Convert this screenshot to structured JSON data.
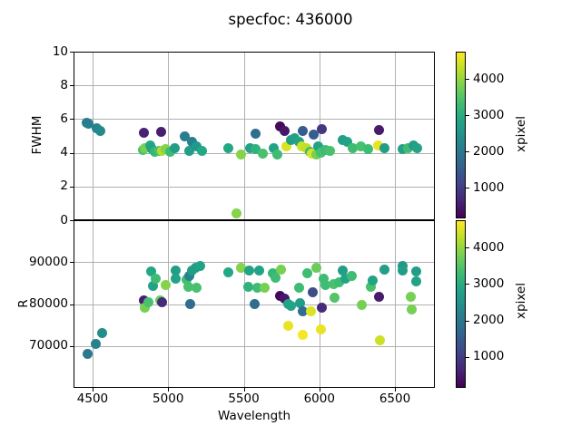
{
  "title": "specfoc: 436000",
  "xlabel": "Wavelength",
  "colorbar": {
    "label": "xpixel",
    "ticks": [
      1000,
      2000,
      3000,
      4000
    ],
    "vmin": 150,
    "vmax": 4750,
    "colormap": "viridis"
  },
  "colors": {
    "background": "#ffffff",
    "grid": "#b0b0b0",
    "text": "#000000",
    "spine": "#000000",
    "viridis": [
      "#440154",
      "#482475",
      "#414487",
      "#355f8d",
      "#2a788e",
      "#21918c",
      "#22a884",
      "#44bf70",
      "#7ad151",
      "#bddf26",
      "#fde725"
    ]
  },
  "chart_data": [
    {
      "type": "scatter",
      "panel": "top",
      "ylabel": "FWHM",
      "xlabel": "Wavelength",
      "xlim": [
        4374,
        6764
      ],
      "ylim": [
        0,
        10
      ],
      "xticks": [
        4500,
        5000,
        5500,
        6000,
        6500
      ],
      "yticks": [
        0,
        2,
        4,
        6,
        8,
        10
      ],
      "grid": true,
      "color_by": "xpixel",
      "color_range": [
        150,
        4750
      ],
      "point_format": [
        "wavelength",
        "fwhm",
        "xpixel"
      ],
      "points": [
        [
          4460,
          5.8,
          2050
        ],
        [
          4472,
          5.75,
          2100
        ],
        [
          4525,
          5.45,
          2200
        ],
        [
          4552,
          5.3,
          2300
        ],
        [
          4838,
          5.2,
          600
        ],
        [
          4952,
          5.25,
          550
        ],
        [
          4832,
          4.15,
          3400
        ],
        [
          4845,
          4.3,
          3800
        ],
        [
          4880,
          4.45,
          2900
        ],
        [
          4893,
          4.2,
          2800
        ],
        [
          4912,
          4.05,
          3200
        ],
        [
          4940,
          4.1,
          3400
        ],
        [
          4962,
          4.1,
          4200
        ],
        [
          4985,
          4.2,
          3900
        ],
        [
          5012,
          4.05,
          3300
        ],
        [
          5045,
          4.3,
          2700
        ],
        [
          5110,
          4.95,
          2100
        ],
        [
          5155,
          4.65,
          2150
        ],
        [
          5140,
          4.1,
          2700
        ],
        [
          5185,
          4.4,
          2600
        ],
        [
          5222,
          4.1,
          2900
        ],
        [
          5400,
          4.25,
          2900
        ],
        [
          5450,
          0.38,
          3900
        ],
        [
          5480,
          3.9,
          3900
        ],
        [
          5539,
          4.3,
          2800
        ],
        [
          5581,
          4.2,
          3100
        ],
        [
          5578,
          5.15,
          1800
        ],
        [
          5629,
          3.95,
          3400
        ],
        [
          5701,
          4.3,
          2800
        ],
        [
          5722,
          3.9,
          3300
        ],
        [
          5740,
          5.55,
          250
        ],
        [
          5768,
          5.3,
          450
        ],
        [
          5782,
          4.4,
          4500
        ],
        [
          5812,
          4.75,
          2700
        ],
        [
          5838,
          4.85,
          2750
        ],
        [
          5868,
          4.65,
          2800
        ],
        [
          5884,
          4.4,
          4400
        ],
        [
          5890,
          5.3,
          1500
        ],
        [
          5915,
          4.3,
          4300
        ],
        [
          5940,
          4.05,
          3300
        ],
        [
          5952,
          3.95,
          4500
        ],
        [
          5960,
          5.1,
          1500
        ],
        [
          5982,
          3.9,
          3800
        ],
        [
          5993,
          4.4,
          2800
        ],
        [
          6008,
          4.0,
          3400
        ],
        [
          6017,
          5.4,
          900
        ],
        [
          6038,
          4.15,
          3300
        ],
        [
          6071,
          4.1,
          3400
        ],
        [
          6155,
          4.75,
          2700
        ],
        [
          6183,
          4.65,
          2800
        ],
        [
          6221,
          4.3,
          3300
        ],
        [
          6276,
          4.4,
          3400
        ],
        [
          6324,
          4.2,
          3300
        ],
        [
          6388,
          4.45,
          4600
        ],
        [
          6396,
          5.35,
          500
        ],
        [
          6430,
          4.3,
          2700
        ],
        [
          6548,
          4.2,
          2800
        ],
        [
          6585,
          4.3,
          3300
        ],
        [
          6622,
          4.45,
          2700
        ],
        [
          6648,
          4.25,
          2800
        ]
      ]
    },
    {
      "type": "scatter",
      "panel": "bottom",
      "ylabel": "R",
      "xlabel": "Wavelength",
      "xlim": [
        4374,
        6764
      ],
      "ylim": [
        60000,
        100000
      ],
      "xticks": [
        4500,
        5000,
        5500,
        6000,
        6500
      ],
      "yticks": [
        70000,
        80000,
        90000
      ],
      "grid": true,
      "color_by": "xpixel",
      "color_range": [
        150,
        4750
      ],
      "point_format": [
        "wavelength",
        "R",
        "xpixel"
      ],
      "points": [
        [
          4470,
          68100,
          2000
        ],
        [
          4522,
          70400,
          2200
        ],
        [
          4565,
          73100,
          2400
        ],
        [
          4838,
          80800,
          550
        ],
        [
          4848,
          79200,
          3800
        ],
        [
          4868,
          80500,
          3400
        ],
        [
          4885,
          87800,
          2900
        ],
        [
          4897,
          84300,
          2800
        ],
        [
          4920,
          86000,
          3300
        ],
        [
          4950,
          80900,
          3700
        ],
        [
          4962,
          80400,
          700
        ],
        [
          4985,
          84600,
          3900
        ],
        [
          5048,
          88100,
          2700
        ],
        [
          5052,
          86000,
          2800
        ],
        [
          5120,
          85800,
          3300
        ],
        [
          5132,
          84200,
          3400
        ],
        [
          5138,
          86800,
          2200
        ],
        [
          5158,
          87900,
          2700
        ],
        [
          5144,
          79900,
          1800
        ],
        [
          5180,
          88700,
          2700
        ],
        [
          5185,
          83800,
          3400
        ],
        [
          5212,
          89100,
          2800
        ],
        [
          5400,
          87600,
          2900
        ],
        [
          5480,
          88600,
          3900
        ],
        [
          5528,
          84100,
          3100
        ],
        [
          5538,
          88000,
          2800
        ],
        [
          5572,
          80000,
          1800
        ],
        [
          5592,
          83800,
          3300
        ],
        [
          5602,
          87900,
          2800
        ],
        [
          5638,
          84000,
          3800
        ],
        [
          5692,
          87400,
          3200
        ],
        [
          5712,
          86300,
          3300
        ],
        [
          5740,
          82000,
          250
        ],
        [
          5746,
          88300,
          3800
        ],
        [
          5770,
          81300,
          450
        ],
        [
          5795,
          80000,
          2800
        ],
        [
          5795,
          74900,
          4600
        ],
        [
          5815,
          79600,
          2800
        ],
        [
          5866,
          83800,
          3300
        ],
        [
          5874,
          80200,
          2700
        ],
        [
          5890,
          78300,
          1800
        ],
        [
          5892,
          72600,
          4700
        ],
        [
          5921,
          87400,
          3300
        ],
        [
          5944,
          78300,
          4500
        ],
        [
          5957,
          82900,
          1200
        ],
        [
          5983,
          88700,
          3700
        ],
        [
          6011,
          73900,
          4600
        ],
        [
          6017,
          79100,
          700
        ],
        [
          6029,
          86000,
          3300
        ],
        [
          6043,
          84600,
          3300
        ],
        [
          6095,
          84800,
          3400
        ],
        [
          6098,
          81600,
          3500
        ],
        [
          6131,
          85200,
          3300
        ],
        [
          6155,
          88000,
          2700
        ],
        [
          6175,
          86000,
          2800
        ],
        [
          6215,
          86700,
          3300
        ],
        [
          6282,
          79800,
          3800
        ],
        [
          6342,
          84100,
          3400
        ],
        [
          6355,
          85700,
          2800
        ],
        [
          6396,
          81800,
          500
        ],
        [
          6402,
          71300,
          4400
        ],
        [
          6430,
          88300,
          2700
        ],
        [
          6548,
          89000,
          2600
        ],
        [
          6552,
          88000,
          2700
        ],
        [
          6607,
          81800,
          3800
        ],
        [
          6613,
          78700,
          3800
        ],
        [
          6638,
          87800,
          2700
        ],
        [
          6640,
          85400,
          2800
        ]
      ]
    }
  ]
}
